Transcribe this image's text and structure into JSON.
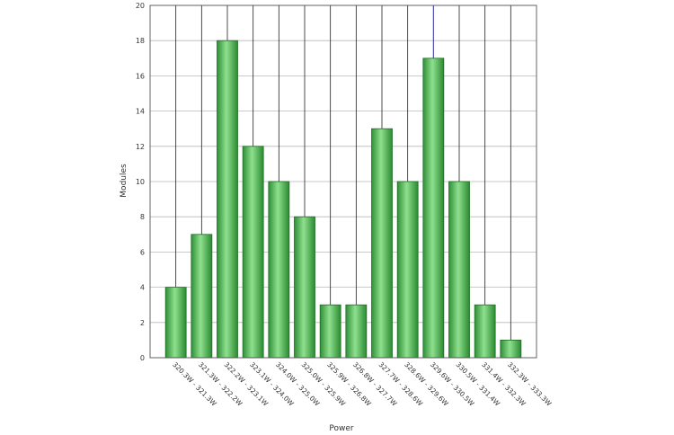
{
  "chart_data": {
    "type": "bar",
    "title": "",
    "xlabel": "Power",
    "ylabel": "Modules",
    "ylim": [
      0,
      20
    ],
    "y_ticks": [
      "0",
      "2",
      "4",
      "6",
      "8",
      "10",
      "12",
      "14",
      "16",
      "18",
      "20"
    ],
    "categories": [
      "320.3W - 321.3W",
      "321.3W - 322.2W",
      "322.2W - 323.1W",
      "323.1W - 324.0W",
      "324.0W - 325.0W",
      "325.0W - 325.9W",
      "325.9W - 326.8W",
      "326.8W - 327.7W",
      "327.7W - 328.6W",
      "328.6W - 329.6W",
      "329.6W - 330.5W",
      "330.5W - 331.4W",
      "331.4W - 332.3W",
      "332.3W - 333.3W"
    ],
    "values": [
      4,
      7,
      18,
      12,
      10,
      8,
      3,
      3,
      13,
      10,
      17,
      10,
      3,
      1
    ],
    "grid": true,
    "bar_color": "#3fae45",
    "highlight_line_color": "#3a3aa8"
  }
}
